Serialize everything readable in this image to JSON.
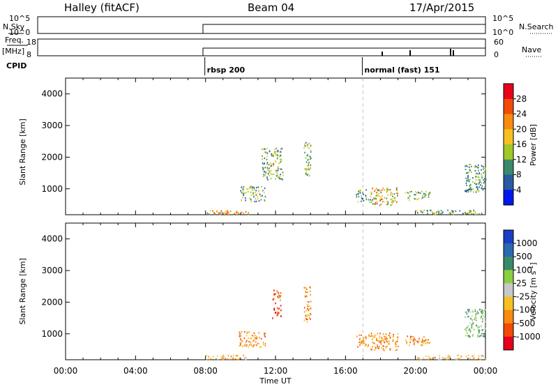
{
  "header": {
    "station": "Halley (fitACF)",
    "beam": "Beam 04",
    "date": "17/Apr/2015"
  },
  "top_panels": {
    "nsky_label": "N.Sky",
    "nsearch_label": "N.Search",
    "nsky_ticks": [
      "10^5",
      "10^0"
    ],
    "nsearch_ticks": [
      "10^5",
      "10^0"
    ],
    "freq_label_1": "Freq.",
    "freq_label_2": "[MHz]",
    "freq_ticks": [
      "18",
      "8"
    ],
    "nave_label": "Nave",
    "nave_ticks": [
      "60",
      "0"
    ],
    "cpid_label": "CPID",
    "cpid_entries": [
      {
        "text": "rbsp 200",
        "start_hour": 8.0
      },
      {
        "text": "normal (fast) 151",
        "start_hour": 17.0
      }
    ]
  },
  "power_colorbar": {
    "title": "Power [dB]",
    "ticks": [
      "28",
      "24",
      "20",
      "16",
      "12",
      "8",
      "4"
    ],
    "colors": [
      "#e8001c",
      "#f24a0a",
      "#f78a10",
      "#f5c020",
      "#a0c828",
      "#3a8a6a",
      "#2a5aa0",
      "#0018ee"
    ]
  },
  "velocity_colorbar": {
    "title": "Velocity [m s",
    "title_sup": "-1",
    "title_end": "]",
    "ticks": [
      "1000",
      "500",
      "100",
      "25",
      "-25",
      "-100",
      "-500",
      "-1000"
    ],
    "colors": [
      "#1a3ec8",
      "#2a6ab0",
      "#3a8a6a",
      "#8ad040",
      "#c8c8c8",
      "#f5c020",
      "#f78a10",
      "#f24a0a",
      "#e8001c"
    ]
  },
  "chart_data": [
    {
      "type": "heatmap",
      "title": "",
      "panel": "power",
      "xlabel": "",
      "ylabel": "Slant Range [km]",
      "xlim": [
        0,
        24
      ],
      "ylim": [
        180,
        4500
      ],
      "yticks": [
        "1000",
        "2000",
        "3000",
        "4000"
      ],
      "marker_line_hour": 17.0,
      "echo_regions": [
        {
          "t0": 9.9,
          "t1": 11.4,
          "r0": 600,
          "r1": 1100,
          "level": "mid"
        },
        {
          "t0": 11.2,
          "t1": 12.4,
          "r0": 1300,
          "r1": 2300,
          "level": "mid"
        },
        {
          "t0": 13.6,
          "t1": 14.0,
          "r0": 1400,
          "r1": 2500,
          "level": "mid"
        },
        {
          "t0": 16.6,
          "t1": 17.4,
          "r0": 600,
          "r1": 1000,
          "level": "mid"
        },
        {
          "t0": 17.4,
          "t1": 19.0,
          "r0": 500,
          "r1": 1050,
          "level": "high"
        },
        {
          "t0": 19.4,
          "t1": 20.8,
          "r0": 650,
          "r1": 950,
          "level": "mid"
        },
        {
          "t0": 22.8,
          "t1": 24.0,
          "r0": 900,
          "r1": 1800,
          "level": "low"
        },
        {
          "t0": 8.0,
          "t1": 10.5,
          "r0": 200,
          "r1": 350,
          "level": "high"
        },
        {
          "t0": 20.0,
          "t1": 24.0,
          "r0": 200,
          "r1": 350,
          "level": "mid"
        }
      ]
    },
    {
      "type": "heatmap",
      "title": "",
      "panel": "velocity",
      "xlabel": "Time UT",
      "ylabel": "Slant Range [km]",
      "xlim": [
        0,
        24
      ],
      "ylim": [
        180,
        4500
      ],
      "yticks": [
        "1000",
        "2000",
        "3000",
        "4000"
      ],
      "xticks": [
        "00:00",
        "04:00",
        "08:00",
        "12:00",
        "16:00",
        "20:00",
        "00:00"
      ],
      "marker_line_hour": 17.0,
      "echo_regions": [
        {
          "t0": 9.9,
          "t1": 11.4,
          "r0": 600,
          "r1": 1100,
          "level": "neg"
        },
        {
          "t0": 11.8,
          "t1": 12.3,
          "r0": 1500,
          "r1": 2400,
          "level": "strongneg"
        },
        {
          "t0": 13.6,
          "t1": 14.0,
          "r0": 1400,
          "r1": 2500,
          "level": "neg"
        },
        {
          "t0": 16.6,
          "t1": 17.4,
          "r0": 600,
          "r1": 1000,
          "level": "neg"
        },
        {
          "t0": 17.4,
          "t1": 19.0,
          "r0": 500,
          "r1": 1050,
          "level": "neg"
        },
        {
          "t0": 19.4,
          "t1": 20.8,
          "r0": 650,
          "r1": 950,
          "level": "neg"
        },
        {
          "t0": 22.8,
          "t1": 24.0,
          "r0": 900,
          "r1": 1800,
          "level": "pos"
        },
        {
          "t0": 8.0,
          "t1": 10.5,
          "r0": 200,
          "r1": 350,
          "level": "weak"
        },
        {
          "t0": 20.0,
          "t1": 24.0,
          "r0": 200,
          "r1": 350,
          "level": "weak"
        }
      ]
    }
  ]
}
